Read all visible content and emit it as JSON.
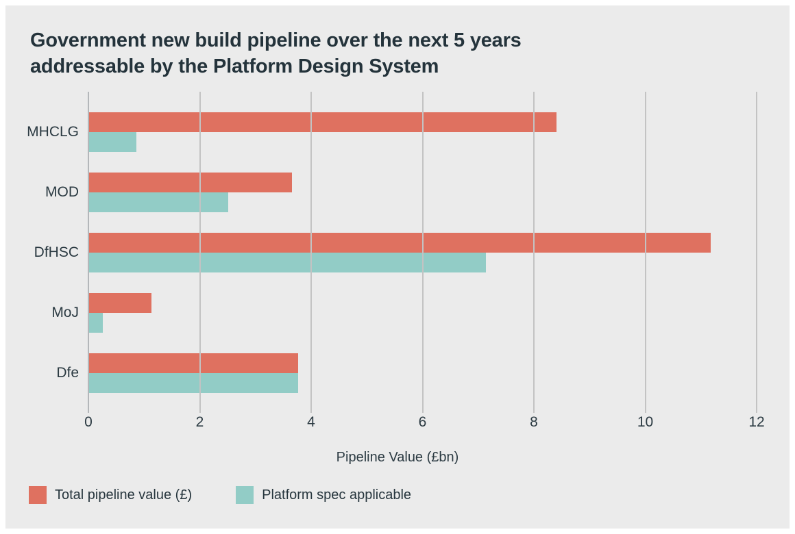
{
  "title": "Government new build pipeline over the next 5 years addressable by the Platform Design System",
  "chart_data": {
    "type": "bar",
    "orientation": "horizontal",
    "title": "Government new build pipeline over the next 5 years addressable by the Platform Design System",
    "categories": [
      "MHCLG",
      "MOD",
      "DfHSC",
      "MoJ",
      "Dfe"
    ],
    "series": [
      {
        "name": "Total pipeline value (£)",
        "color": "#df7160",
        "values": [
          8.4,
          3.66,
          11.18,
          1.13,
          3.77
        ]
      },
      {
        "name": "Platform spec applicable",
        "color": "#92ccc6",
        "values": [
          0.86,
          2.51,
          7.14,
          0.26,
          3.77
        ]
      }
    ],
    "xlabel": "Pipeline Value (£bn)",
    "ylabel": "",
    "xticks": [
      0,
      2,
      4,
      6,
      8,
      10,
      12
    ],
    "xlim": [
      0,
      12.45
    ],
    "grid": "vertical-only",
    "legend_position": "bottom-left",
    "colors": {
      "panel_background": "#ebebeb",
      "page_border": "#ffffff",
      "gridline": "#c3c3c3",
      "axis_line": "#b4b7ba",
      "text": "#2b3a42",
      "title_text": "#24333b"
    }
  }
}
